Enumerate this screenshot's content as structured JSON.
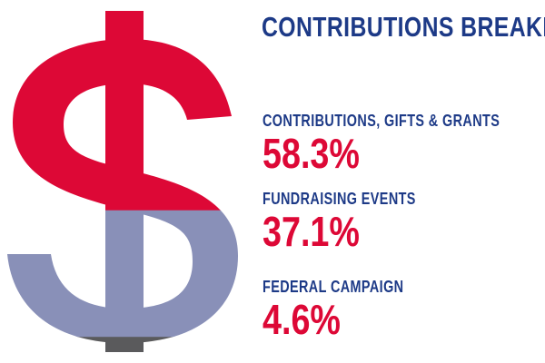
{
  "chart_data": {
    "type": "pie",
    "title": "CONTRIBUTIONS BREAKDOWN",
    "categories": [
      "CONTRIBUTIONS, GIFTS & GRANTS",
      "FUNDRAISING EVENTS",
      "FEDERAL CAMPAIGN"
    ],
    "values": [
      58.3,
      37.1,
      4.6
    ],
    "value_labels": [
      "58.3%",
      "37.1%",
      "4.6%"
    ],
    "unit": "%",
    "colors": [
      "#dd0836",
      "#8990b8",
      "#5a5a5c"
    ],
    "label_color": "#1d3a87",
    "value_color": "#dd0836",
    "visual_form": "dollar-sign-icon filled bottom-up in proportion to each share"
  }
}
